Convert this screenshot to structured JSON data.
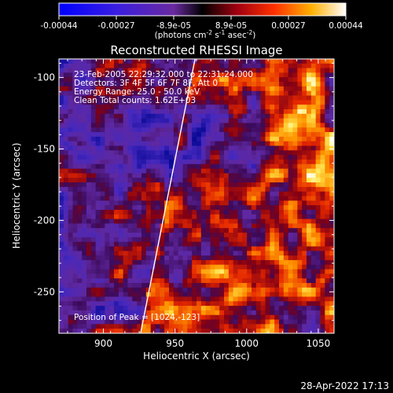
{
  "colorbar": {
    "ticks": [
      "-0.00044",
      "-0.00027",
      "-8.9e-05",
      "8.9e-05",
      "0.00027",
      "0.00044"
    ],
    "units_main": "(photons cm",
    "units_sup1": "-2",
    "units_mid1": " s",
    "units_sup2": "-1",
    "units_mid2": " asec",
    "units_sup3": "-2",
    "units_end": ")"
  },
  "chart_data": {
    "type": "heatmap",
    "title": "Reconstructed RHESSI Image",
    "xlabel": "Heliocentric X (arcsec)",
    "ylabel": "Heliocentric Y (arcsec)",
    "xlim": [
      869,
      1061
    ],
    "ylim": [
      -279,
      -87
    ],
    "xticks": [
      "900",
      "950",
      "1000",
      "1050"
    ],
    "yticks": [
      "-100",
      "-150",
      "-200",
      "-250"
    ],
    "x_tick_values": [
      900,
      950,
      1000,
      1050
    ],
    "y_tick_values": [
      -100,
      -150,
      -200,
      -250
    ],
    "color_range": [
      -0.00044,
      0.00044
    ],
    "colormap": "blue-purple-red-yellow-white",
    "annotations": [
      "23-Feb-2005 22:29:32.000 to 22:31:24.000",
      "Detectors: 3F 4F 5F 6F 7F 8F, Att 0",
      "Energy Range: 25.0 - 50.0 keV",
      "Clean    Total counts: 1.62E+03"
    ],
    "peak_label": "Position of Peak = [1024,-123]",
    "peak": [
      1024,
      -123
    ],
    "limb_line": [
      [
        926,
        -279
      ],
      [
        964,
        -87
      ]
    ]
  },
  "footer": {
    "timestamp": "28-Apr-2022 17:13"
  }
}
